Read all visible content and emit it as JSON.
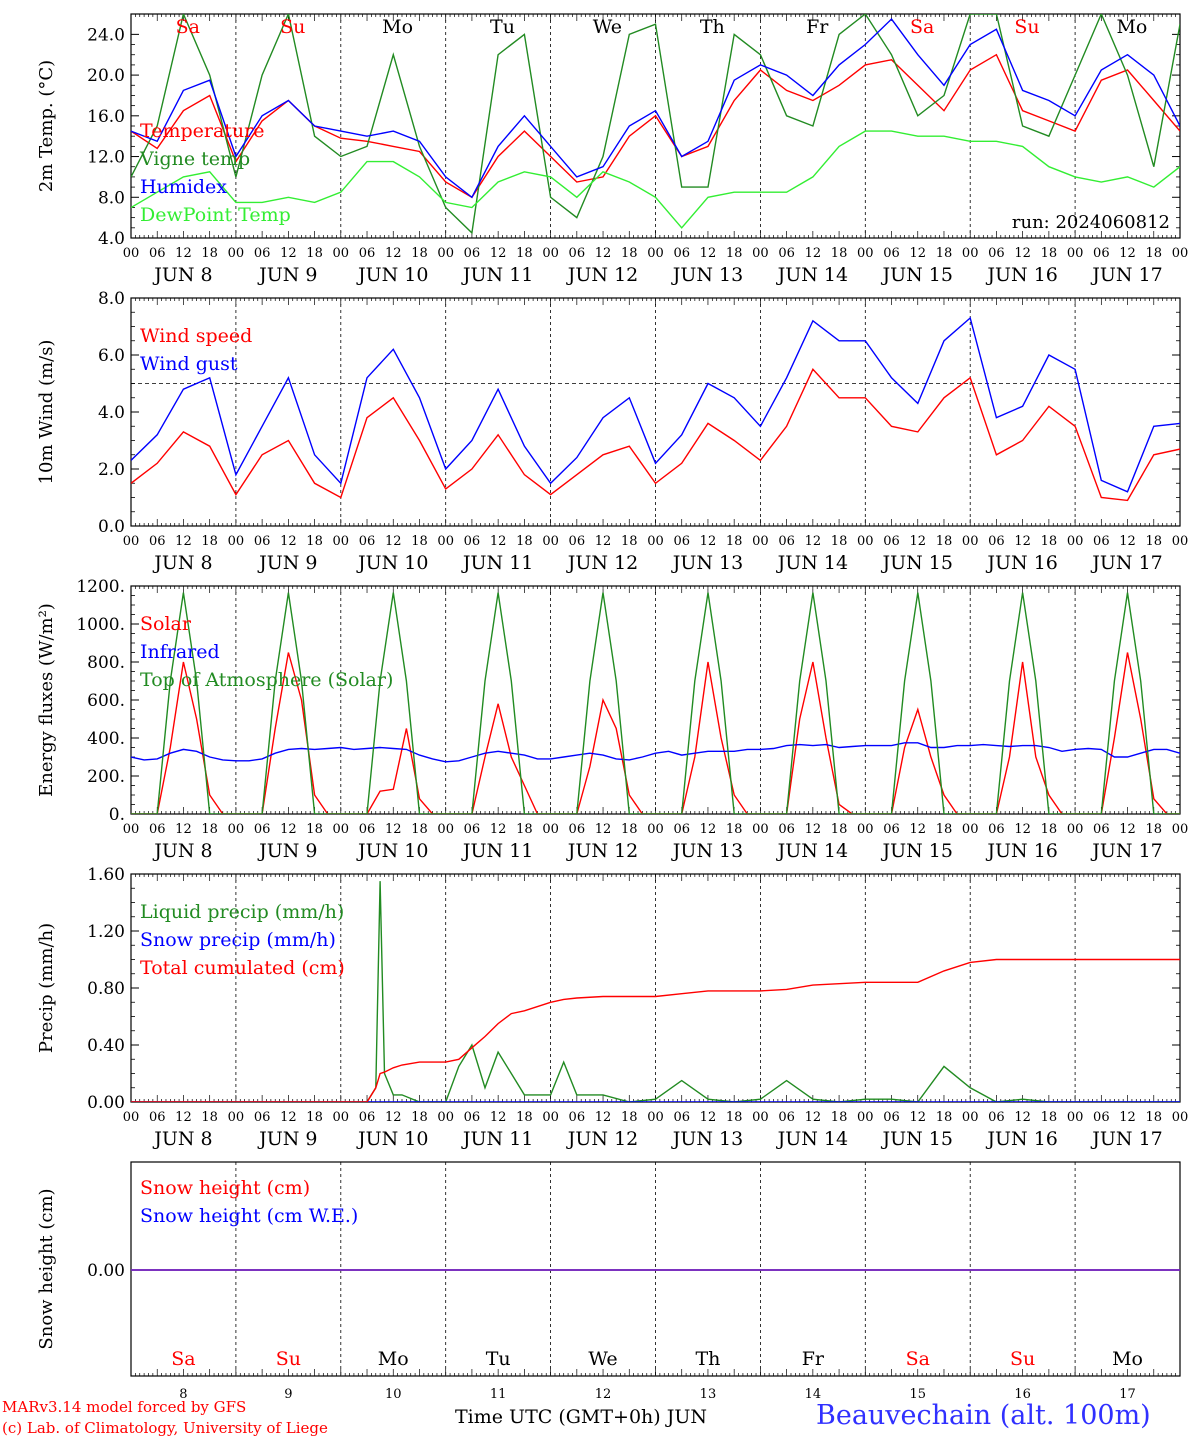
{
  "chart_data": [
    {
      "type": "line",
      "ylabel": "2m Temp. (°C)",
      "ylim": [
        4,
        26
      ],
      "yticks": [
        "4.0",
        "8.0",
        "12.0",
        "16.0",
        "20.0",
        "24.0"
      ],
      "yticks_values": [
        4,
        8,
        12,
        16,
        20,
        24
      ],
      "run_label": "run: 2024060812",
      "x_hours": [
        0,
        6,
        12,
        18,
        24,
        30,
        36,
        42,
        48,
        54,
        60,
        66,
        72,
        78,
        84,
        90,
        96,
        102,
        108,
        114,
        120,
        126,
        132,
        138,
        144,
        150,
        156,
        162,
        168,
        174,
        180,
        186,
        192,
        198,
        204,
        210,
        216,
        222,
        228,
        234,
        240
      ],
      "series": [
        {
          "name": "Temperature",
          "color": "#ff0000",
          "values": [
            14.5,
            12.8,
            16.5,
            18.0,
            11.5,
            15.5,
            17.5,
            15.0,
            13.8,
            13.5,
            13.0,
            12.5,
            9.5,
            8.0,
            12.0,
            14.5,
            12.0,
            9.5,
            10.0,
            14.0,
            16.0,
            12.0,
            13.0,
            17.5,
            20.5,
            18.5,
            17.5,
            19.0,
            21.0,
            21.5,
            19.0,
            16.5,
            20.5,
            22.0,
            16.5,
            15.5,
            14.5,
            19.5,
            20.5,
            17.5,
            14.5
          ]
        },
        {
          "name": "Vigne temp",
          "color": "#228b22",
          "values": [
            10.0,
            15.0,
            26.0,
            20.0,
            10.0,
            20.0,
            26.0,
            14.0,
            12.0,
            13.0,
            22.0,
            13.0,
            7.0,
            4.5,
            22.0,
            24.0,
            8.0,
            6.0,
            12.0,
            24.0,
            25.0,
            9.0,
            9.0,
            24.0,
            22.0,
            16.0,
            15.0,
            24.0,
            26.0,
            22.0,
            16.0,
            18.0,
            26.0,
            26.0,
            15.0,
            14.0,
            20.0,
            26.0,
            20.0,
            11.0,
            25.0
          ]
        },
        {
          "name": "Humidex",
          "color": "#0000ff",
          "values": [
            14.5,
            13.5,
            18.5,
            19.5,
            12.0,
            16.0,
            17.5,
            15.0,
            14.5,
            14.0,
            14.5,
            13.5,
            10.0,
            8.0,
            13.0,
            16.0,
            13.0,
            10.0,
            11.0,
            15.0,
            16.5,
            12.0,
            13.5,
            19.5,
            21.0,
            20.0,
            18.0,
            21.0,
            23.0,
            25.5,
            22.0,
            19.0,
            23.0,
            24.5,
            18.5,
            17.5,
            16.0,
            20.5,
            22.0,
            20.0,
            15.0
          ]
        },
        {
          "name": "DewPoint Temp",
          "color": "#33ee33",
          "values": [
            7.0,
            8.5,
            10.0,
            10.5,
            7.5,
            7.5,
            8.0,
            7.5,
            8.5,
            11.5,
            11.5,
            10.0,
            7.5,
            7.0,
            9.5,
            10.5,
            10.0,
            8.0,
            10.5,
            9.5,
            8.0,
            5.0,
            8.0,
            8.5,
            8.5,
            8.5,
            10.0,
            13.0,
            14.5,
            14.5,
            14.0,
            14.0,
            13.5,
            13.5,
            13.0,
            11.0,
            10.0,
            9.5,
            10.0,
            9.0,
            11.0
          ]
        }
      ]
    },
    {
      "type": "line",
      "ylabel": "10m Wind (m/s)",
      "ylim": [
        0,
        8
      ],
      "yticks": [
        "0.0",
        "2.0",
        "4.0",
        "6.0",
        "8.0"
      ],
      "yticks_values": [
        0,
        2,
        4,
        6,
        8
      ],
      "reference_line": 5.0,
      "x_hours": [
        0,
        6,
        12,
        18,
        24,
        30,
        36,
        42,
        48,
        54,
        60,
        66,
        72,
        78,
        84,
        90,
        96,
        102,
        108,
        114,
        120,
        126,
        132,
        138,
        144,
        150,
        156,
        162,
        168,
        174,
        180,
        186,
        192,
        198,
        204,
        210,
        216,
        222,
        228,
        234,
        240
      ],
      "series": [
        {
          "name": "Wind speed",
          "color": "#ff0000",
          "values": [
            1.5,
            2.2,
            3.3,
            2.8,
            1.1,
            2.5,
            3.0,
            1.5,
            1.0,
            3.8,
            4.5,
            3.0,
            1.3,
            2.0,
            3.2,
            1.8,
            1.1,
            1.8,
            2.5,
            2.8,
            1.5,
            2.2,
            3.6,
            3.0,
            2.3,
            3.5,
            5.5,
            4.5,
            4.5,
            3.5,
            3.3,
            4.5,
            5.2,
            2.5,
            3.0,
            4.2,
            3.5,
            1.0,
            0.9,
            2.5,
            2.7
          ]
        },
        {
          "name": "Wind gust",
          "color": "#0000ff",
          "values": [
            2.3,
            3.2,
            4.8,
            5.2,
            1.8,
            3.5,
            5.2,
            2.5,
            1.5,
            5.2,
            6.2,
            4.5,
            2.0,
            3.0,
            4.8,
            2.8,
            1.5,
            2.4,
            3.8,
            4.5,
            2.2,
            3.2,
            5.0,
            4.5,
            3.5,
            5.2,
            7.2,
            6.5,
            6.5,
            5.2,
            4.3,
            6.5,
            7.3,
            3.8,
            4.2,
            6.0,
            5.5,
            1.6,
            1.2,
            3.5,
            3.6
          ]
        }
      ]
    },
    {
      "type": "line",
      "ylabel": "Energy fluxes (W/m²)",
      "ylim": [
        0,
        1200
      ],
      "yticks": [
        "0.",
        "200.",
        "400.",
        "600.",
        "800.",
        "1000.",
        "1200."
      ],
      "yticks_values": [
        0,
        200,
        400,
        600,
        800,
        1000,
        1200
      ],
      "x_hours": [
        0,
        3,
        6,
        9,
        12,
        15,
        18,
        21,
        24,
        27,
        30,
        33,
        36,
        39,
        42,
        45,
        48,
        51,
        54,
        57,
        60,
        63,
        66,
        69,
        72,
        75,
        78,
        81,
        84,
        87,
        90,
        93,
        96,
        99,
        102,
        105,
        108,
        111,
        114,
        117,
        120,
        123,
        126,
        129,
        132,
        135,
        138,
        141,
        144,
        147,
        150,
        153,
        156,
        159,
        162,
        165,
        168,
        171,
        174,
        177,
        180,
        183,
        186,
        189,
        192,
        195,
        198,
        201,
        204,
        207,
        210,
        213,
        216,
        219,
        222,
        225,
        228,
        231,
        234,
        237,
        240
      ],
      "series": [
        {
          "name": "Solar",
          "color": "#ff0000",
          "values": [
            0,
            0,
            0,
            350,
            800,
            500,
            100,
            0,
            0,
            0,
            0,
            450,
            850,
            600,
            100,
            0,
            0,
            0,
            0,
            120,
            130,
            450,
            80,
            0,
            0,
            0,
            0,
            300,
            580,
            300,
            150,
            0,
            0,
            0,
            0,
            250,
            600,
            450,
            100,
            0,
            0,
            0,
            0,
            300,
            800,
            400,
            100,
            0,
            0,
            0,
            0,
            500,
            800,
            400,
            50,
            0,
            0,
            0,
            0,
            350,
            550,
            300,
            100,
            0,
            0,
            0,
            0,
            300,
            800,
            300,
            100,
            0,
            0,
            0,
            0,
            400,
            850,
            500,
            80,
            0,
            0
          ]
        },
        {
          "name": "Infrared",
          "color": "#0000ff",
          "values": [
            300,
            285,
            290,
            320,
            340,
            330,
            300,
            285,
            280,
            280,
            290,
            320,
            340,
            345,
            340,
            345,
            350,
            340,
            345,
            350,
            345,
            340,
            310,
            290,
            275,
            280,
            300,
            320,
            330,
            320,
            310,
            290,
            290,
            300,
            310,
            320,
            310,
            290,
            285,
            300,
            320,
            330,
            310,
            320,
            330,
            330,
            330,
            340,
            340,
            345,
            360,
            365,
            360,
            365,
            350,
            355,
            360,
            360,
            360,
            375,
            375,
            350,
            350,
            360,
            360,
            365,
            360,
            355,
            360,
            360,
            350,
            330,
            340,
            345,
            340,
            300,
            300,
            320,
            340,
            340,
            320
          ]
        },
        {
          "name": "Top of Atmosphere (Solar)",
          "color": "#228b22",
          "values": [
            0,
            0,
            0,
            700,
            1165,
            700,
            0,
            0,
            0,
            0,
            0,
            700,
            1165,
            700,
            0,
            0,
            0,
            0,
            0,
            700,
            1165,
            700,
            0,
            0,
            0,
            0,
            0,
            700,
            1165,
            700,
            0,
            0,
            0,
            0,
            0,
            700,
            1165,
            700,
            0,
            0,
            0,
            0,
            0,
            700,
            1165,
            700,
            0,
            0,
            0,
            0,
            0,
            700,
            1165,
            700,
            0,
            0,
            0,
            0,
            0,
            700,
            1165,
            700,
            0,
            0,
            0,
            0,
            0,
            700,
            1165,
            700,
            0,
            0,
            0,
            0,
            0,
            700,
            1165,
            700,
            0,
            0,
            0
          ]
        }
      ]
    },
    {
      "type": "line",
      "ylabel": "Precip (mm/h)",
      "ylim": [
        0,
        1.6
      ],
      "yticks": [
        "0.00",
        "0.40",
        "0.80",
        "1.20",
        "1.60"
      ],
      "yticks_values": [
        0,
        0.4,
        0.8,
        1.2,
        1.6
      ],
      "x_hours": [
        0,
        6,
        12,
        18,
        24,
        30,
        36,
        42,
        48,
        54,
        56,
        57,
        58,
        60,
        62,
        66,
        72,
        75,
        78,
        81,
        84,
        87,
        90,
        96,
        99,
        102,
        108,
        114,
        120,
        126,
        132,
        138,
        144,
        150,
        156,
        162,
        168,
        174,
        180,
        186,
        192,
        198,
        204,
        210,
        216,
        222,
        228,
        234,
        240
      ],
      "series": [
        {
          "name": "Liquid precip (mm/h)",
          "color": "#228b22",
          "values": [
            0,
            0,
            0,
            0,
            0,
            0,
            0,
            0,
            0,
            0,
            0.1,
            1.55,
            0.2,
            0.05,
            0.05,
            0,
            0,
            0.25,
            0.4,
            0.1,
            0.35,
            0.2,
            0.05,
            0.05,
            0.28,
            0.05,
            0.05,
            0,
            0.02,
            0.15,
            0.02,
            0,
            0.02,
            0.15,
            0.02,
            0,
            0.02,
            0.02,
            0,
            0.25,
            0.1,
            0,
            0.02,
            0,
            0,
            0,
            0,
            0,
            0
          ]
        },
        {
          "name": "Snow precip (mm/h)",
          "color": "#0000ff",
          "values": [
            0,
            0,
            0,
            0,
            0,
            0,
            0,
            0,
            0,
            0,
            0,
            0,
            0,
            0,
            0,
            0,
            0,
            0,
            0,
            0,
            0,
            0,
            0,
            0,
            0,
            0,
            0,
            0,
            0,
            0,
            0,
            0,
            0,
            0,
            0,
            0,
            0,
            0,
            0,
            0,
            0,
            0,
            0,
            0,
            0,
            0,
            0,
            0,
            0
          ]
        },
        {
          "name": "Total cumulated (cm)",
          "color": "#ff0000",
          "values": [
            0,
            0,
            0,
            0,
            0,
            0,
            0,
            0,
            0,
            0,
            0.1,
            0.2,
            0.21,
            0.24,
            0.26,
            0.28,
            0.28,
            0.3,
            0.38,
            0.46,
            0.55,
            0.62,
            0.64,
            0.7,
            0.72,
            0.73,
            0.74,
            0.74,
            0.74,
            0.76,
            0.78,
            0.78,
            0.78,
            0.79,
            0.82,
            0.83,
            0.84,
            0.84,
            0.84,
            0.92,
            0.98,
            1.0,
            1.0,
            1.0,
            1.0,
            1.0,
            1.0,
            1.0,
            1.0
          ]
        }
      ]
    },
    {
      "type": "line",
      "ylabel": "Snow height (cm)",
      "yticks": [
        "0.00"
      ],
      "yticks_values": [
        0
      ],
      "x_hours": [
        0,
        240
      ],
      "series": [
        {
          "name": "Snow height (cm)",
          "color": "#ff0000",
          "values": [
            0,
            0
          ]
        },
        {
          "name": "Snow height (cm W.E.)",
          "color": "#0000ff",
          "values": [
            0,
            0
          ]
        }
      ]
    }
  ],
  "time_axis": {
    "hour_labels": [
      "00",
      "06",
      "12",
      "18"
    ],
    "date_labels": [
      "JUN  8",
      "JUN  9",
      "JUN 10",
      "JUN 11",
      "JUN 12",
      "JUN 13",
      "JUN 14",
      "JUN 15",
      "JUN 16",
      "JUN 17"
    ],
    "weekdays": [
      "Sa",
      "Su",
      "Mo",
      "Tu",
      "We",
      "Th",
      "Fr",
      "Sa",
      "Su",
      "Mo"
    ],
    "weekday_colors": [
      "#ff0000",
      "#ff0000",
      "#000000",
      "#000000",
      "#000000",
      "#000000",
      "#000000",
      "#ff0000",
      "#ff0000",
      "#000000"
    ],
    "day_numbers": [
      "8",
      "9",
      "10",
      "11",
      "12",
      "13",
      "14",
      "15",
      "16",
      "17"
    ]
  },
  "footer": {
    "model_line": "MARv3.14 model forced by GFS",
    "credit_line": "(c) Lab. of Climatology, University of Liege",
    "time_label": "Time UTC (GMT+0h) JUN",
    "station": "Beauvechain (alt. 100m)"
  }
}
